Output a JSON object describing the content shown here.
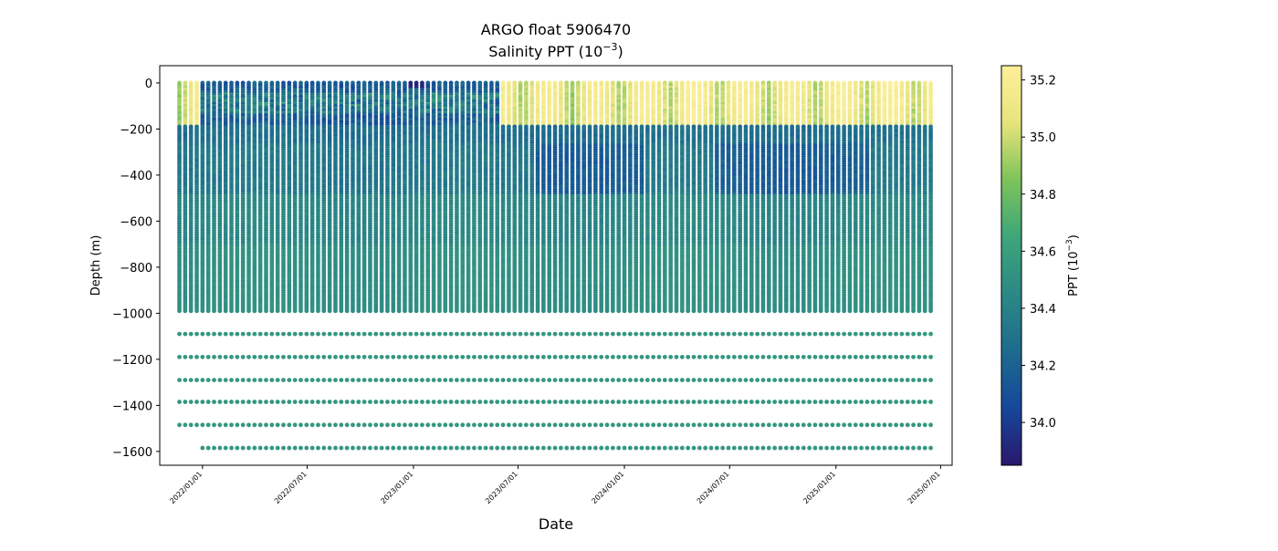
{
  "chart_data": {
    "type": "scatter",
    "title": "ARGO float 5906470",
    "subtitle_prefix": "Salinity PPT (10",
    "subtitle_exp": "−3",
    "subtitle_suffix": ")",
    "xlabel": "Date",
    "ylabel": "Depth (m)",
    "colorbar_label_prefix": "PPT (10",
    "colorbar_label_exp": "−3",
    "colorbar_label_suffix": ")",
    "colormap": "haline",
    "colormap_stops": [
      "#2a186c",
      "#16479b",
      "#1d6b8e",
      "#2d8885",
      "#3da67a",
      "#7ec35a",
      "#e8e47c",
      "#fdef9a"
    ],
    "color_range": [
      33.85,
      35.25
    ],
    "colorbar_ticks": [
      34.0,
      34.2,
      34.4,
      34.6,
      34.8,
      35.0,
      35.2
    ],
    "colorbar_tick_labels": [
      "34.0",
      "34.2",
      "34.4",
      "34.6",
      "34.8",
      "35.0",
      "35.2"
    ],
    "xlim": [
      "2021-10-19",
      "2025-07-21"
    ],
    "ylim": [
      -1660,
      75
    ],
    "x_ticks": [
      "2022-01-01",
      "2022-07-01",
      "2023-01-01",
      "2023-07-01",
      "2024-01-01",
      "2024-07-01",
      "2025-01-01",
      "2025-07-01"
    ],
    "x_tick_labels": [
      "2022/01/01",
      "2022/07/01",
      "2023/01/01",
      "2023/07/01",
      "2024/01/01",
      "2024/07/01",
      "2025/01/01",
      "2025/07/01"
    ],
    "y_ticks": [
      0,
      -200,
      -400,
      -600,
      -800,
      -1000,
      -1200,
      -1400,
      -1600
    ],
    "y_tick_labels": [
      "0",
      "−200",
      "−400",
      "−600",
      "−800",
      "−1000",
      "−1200",
      "−1400",
      "−1600"
    ],
    "profile_start": "2021-11-22",
    "profile_end": "2025-06-18",
    "profile_interval_days": 10,
    "continuous_depth_range": [
      0,
      -990
    ],
    "deep_sample_depths": [
      -1090,
      -1190,
      -1290,
      -1385,
      -1485,
      -1585
    ],
    "deep_sample_salinity": 34.55,
    "deepest_level_start": "2022-01-01",
    "salinity_structure": {
      "surface_layer_depth": [
        0,
        -180
      ],
      "surface_fresh_periods": [
        [
          "2021-12-25",
          "2023-06-01"
        ]
      ],
      "surface_salty_periods": [
        [
          "2021-11-22",
          "2021-12-10"
        ],
        [
          "2023-06-01",
          "2025-06-18"
        ]
      ],
      "subsurface_minimum_depth": [
        -200,
        -450
      ],
      "subsurface_minimum_value": 34.2,
      "deep_value": 34.5,
      "surface_max_value": 35.15,
      "surface_min_value": 33.9
    }
  }
}
